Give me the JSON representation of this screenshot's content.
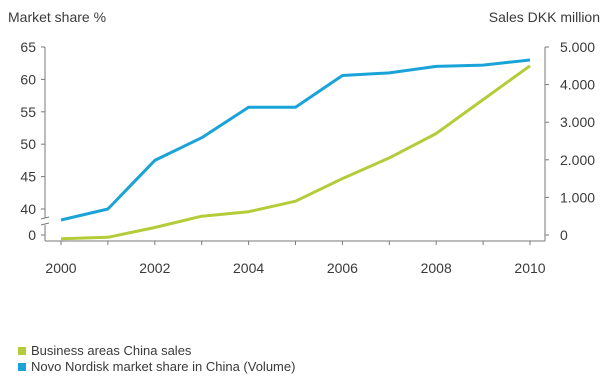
{
  "chart_data": {
    "type": "line",
    "x": [
      2000,
      2001,
      2002,
      2003,
      2004,
      2005,
      2006,
      2007,
      2008,
      2009,
      2010
    ],
    "x_ticks": [
      "2000",
      "2002",
      "2004",
      "2006",
      "2008",
      "2010"
    ],
    "xlim": [
      2000,
      2010
    ],
    "left_axis": {
      "label": "Market share %",
      "ticks": [
        "0",
        "40",
        "45",
        "50",
        "55",
        "60",
        "65"
      ],
      "broken": true,
      "range": [
        40,
        65
      ]
    },
    "right_axis": {
      "label": "Sales DKK million",
      "ticks": [
        "0",
        "1.000",
        "2.000",
        "3.000",
        "4.000",
        "5.000"
      ],
      "tick_values": [
        0,
        1000,
        2000,
        3000,
        4000,
        5000
      ],
      "range": [
        0,
        5000
      ]
    },
    "series": [
      {
        "name": "Business areas China sales",
        "axis": "right",
        "color": "#b5cc3a",
        "values": [
          -100,
          -60,
          200,
          500,
          620,
          900,
          1500,
          2050,
          2700,
          3600,
          4500
        ]
      },
      {
        "name": "Novo Nordisk market share in China (Volume)",
        "axis": "left",
        "color": "#1aa3d9",
        "values": [
          38.3,
          40,
          47.5,
          51,
          55.7,
          55.7,
          60.6,
          61,
          62,
          62.2,
          63
        ]
      }
    ],
    "grid": false,
    "legend": "bottom-left"
  }
}
